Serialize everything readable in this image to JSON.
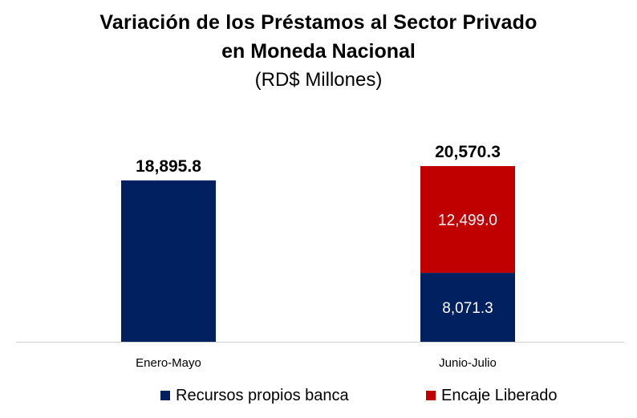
{
  "chart_data": {
    "type": "bar",
    "stacked": true,
    "title": "Variación de los Préstamos al Sector Privado",
    "title_line2": "en Moneda Nacional",
    "subtitle": "(RD$ Millones)",
    "categories": [
      "Enero-Mayo",
      "Junio-Julio"
    ],
    "series": [
      {
        "name": "Recursos propios banca",
        "color": "#002060",
        "values": [
          18895.8,
          8071.3
        ]
      },
      {
        "name": "Encaje Liberado",
        "color": "#C00000",
        "values": [
          null,
          12499.0
        ]
      }
    ],
    "data_labels": {
      "series": [
        [
          "",
          "8,071.3"
        ],
        [
          "",
          "12,499.0"
        ]
      ],
      "totals": [
        "18,895.8",
        "20,570.3"
      ]
    },
    "ylim": [
      0,
      20570.3
    ],
    "grid": false,
    "legend_position": "bottom"
  }
}
